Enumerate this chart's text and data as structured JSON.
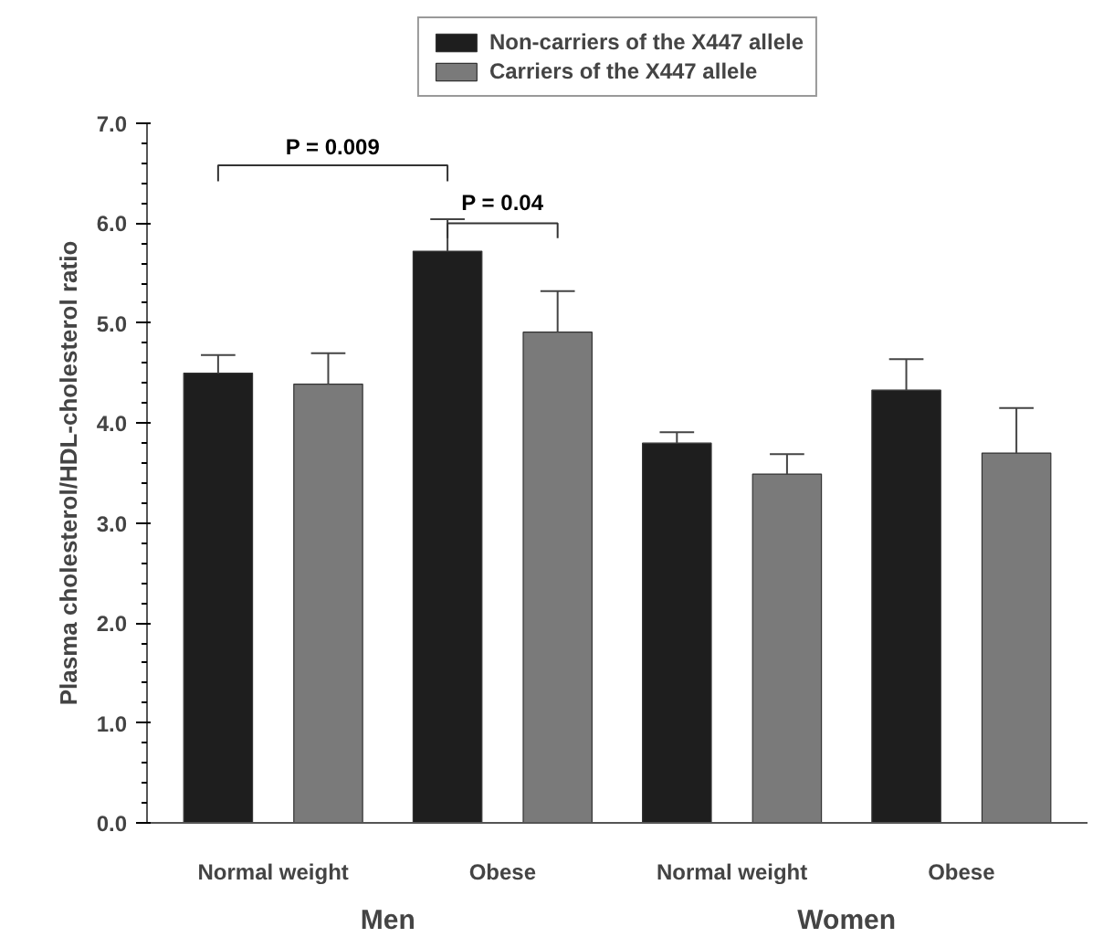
{
  "chart_data": {
    "type": "bar",
    "ylabel": "Plasma cholesterol/HDL-cholesterol ratio",
    "categories": [
      "Normal weight",
      "Obese",
      "Normal weight",
      "Obese"
    ],
    "series": [
      {
        "name": "Non-carriers of the X447 allele",
        "color": "#1e1e1e",
        "values": [
          4.5,
          5.72,
          3.8,
          4.33
        ],
        "errors": [
          [
            4.5,
            4.68
          ],
          [
            5.72,
            6.04
          ],
          [
            3.8,
            3.91
          ],
          [
            4.33,
            4.64
          ]
        ]
      },
      {
        "name": "Carriers of the X447 allele",
        "color": "#7a7a7a",
        "values": [
          4.39,
          4.91,
          3.49,
          3.7
        ],
        "errors": [
          [
            4.39,
            4.7
          ],
          [
            4.91,
            5.32
          ],
          [
            3.49,
            3.69
          ],
          [
            3.7,
            4.15
          ]
        ]
      }
    ],
    "ylim": [
      0,
      7
    ],
    "yticks": [
      {
        "value": 0,
        "label": "0.0"
      },
      {
        "value": 1,
        "label": "1.0"
      },
      {
        "value": 2,
        "label": "2.0"
      },
      {
        "value": 3,
        "label": "3.0"
      },
      {
        "value": 4,
        "label": "4.0"
      },
      {
        "value": 5,
        "label": "5.0"
      },
      {
        "value": 6,
        "label": "6.0"
      },
      {
        "value": 7,
        "label": "7.0"
      }
    ],
    "annotations": [
      "P = 0.009",
      "P = 0.04",
      "Men",
      "Women"
    ],
    "legend": "top",
    "grid": false
  }
}
